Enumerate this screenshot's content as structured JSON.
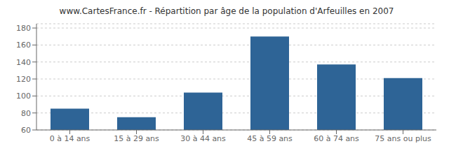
{
  "chart_data": {
    "type": "bar",
    "title": "www.CartesFrance.fr - Répartition par âge de la population d'Arfeuilles en 2007",
    "categories": [
      "0 à 14 ans",
      "15 à 29 ans",
      "30 à 44 ans",
      "45 à 59 ans",
      "60 à 74 ans",
      "75 ans ou plus"
    ],
    "values": [
      85,
      75,
      104,
      170,
      137,
      121
    ],
    "color": "#2e6496",
    "ylim": [
      60,
      185
    ],
    "yticks": [
      60,
      80,
      100,
      120,
      140,
      160,
      180
    ],
    "grid": true
  }
}
